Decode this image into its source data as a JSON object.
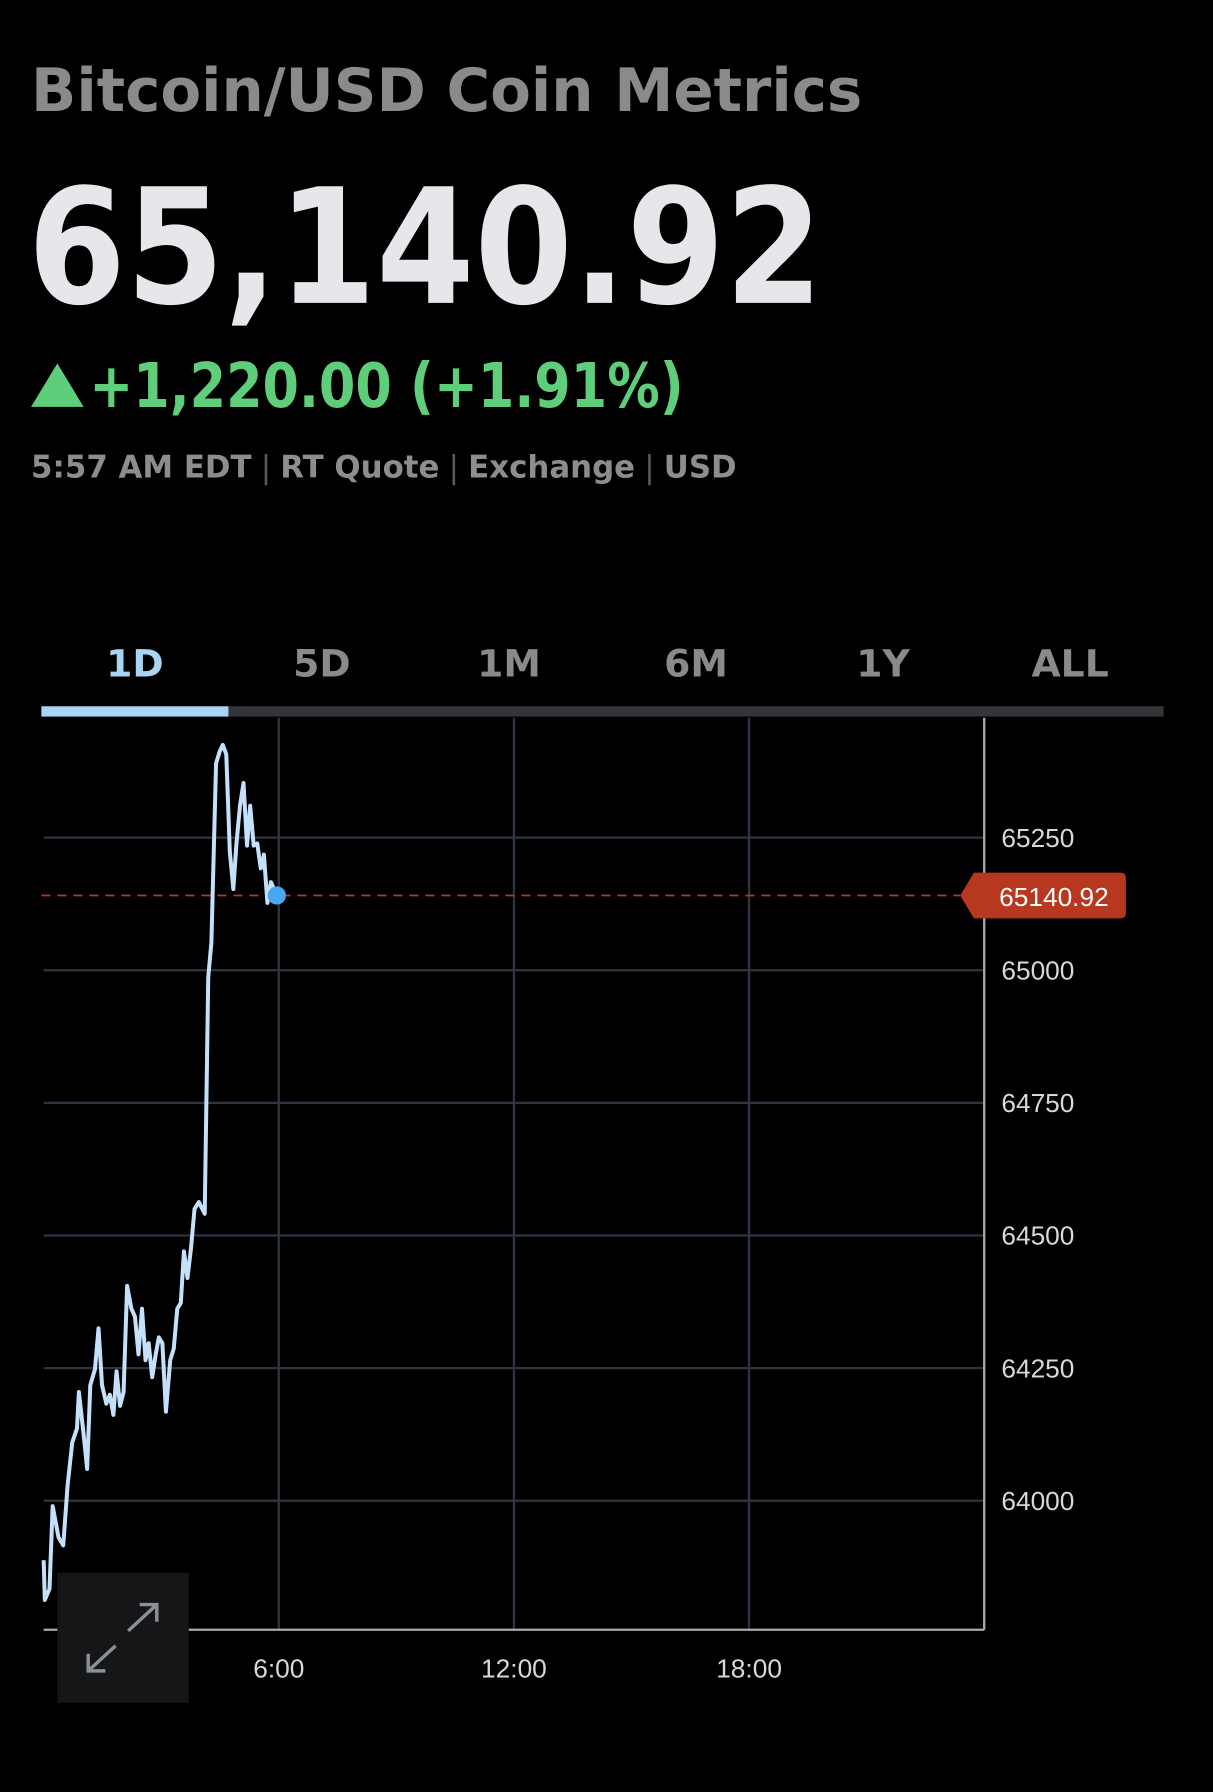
{
  "header": {
    "title": "Bitcoin/USD Coin Metrics",
    "price": "65,140.92",
    "change": "+1,220.00 (+1.91%)",
    "quote_info": [
      "5:57 AM EDT",
      "RT Quote",
      "Exchange",
      "USD"
    ],
    "separator": "|"
  },
  "tabs": {
    "items": [
      "1D",
      "5D",
      "1M",
      "6M",
      "1Y",
      "ALL"
    ],
    "active": 0
  },
  "chart_data": {
    "type": "line",
    "x": [
      0,
      0.03,
      0.15,
      0.23,
      0.38,
      0.5,
      0.61,
      0.73,
      0.85,
      0.9,
      1.02,
      1.11,
      1.19,
      1.31,
      1.4,
      1.49,
      1.6,
      1.69,
      1.78,
      1.86,
      1.95,
      2.04,
      2.13,
      2.24,
      2.33,
      2.42,
      2.51,
      2.6,
      2.68,
      2.77,
      2.86,
      2.94,
      3.03,
      3.12,
      3.23,
      3.32,
      3.41,
      3.5,
      3.58,
      3.67,
      3.76,
      3.85,
      3.96,
      4.11,
      4.2,
      4.28,
      4.4,
      4.49,
      4.57,
      4.66,
      4.75,
      4.84,
      4.92,
      5.01,
      5.1,
      5.19,
      5.27,
      5.36,
      5.45,
      5.54,
      5.62,
      5.71,
      5.8,
      5.95
    ],
    "series": [
      {
        "name": "Bitcoin/USD",
        "color": "#c5e0fb",
        "values": [
          63888,
          63813,
          63834,
          63990,
          63931,
          63916,
          64028,
          64110,
          64136,
          64205,
          64125,
          64060,
          64218,
          64248,
          64325,
          64218,
          64183,
          64200,
          64162,
          64244,
          64179,
          64205,
          64405,
          64362,
          64347,
          64276,
          64362,
          64265,
          64297,
          64233,
          64276,
          64308,
          64297,
          64168,
          64265,
          64287,
          64362,
          64373,
          64470,
          64420,
          64476,
          64550,
          64563,
          64541,
          64987,
          65052,
          65390,
          65412,
          65425,
          65407,
          65224,
          65153,
          65239,
          65310,
          65353,
          65235,
          65310,
          65235,
          65239,
          65192,
          65218,
          65127,
          65166,
          65140.92
        ]
      }
    ],
    "last_price": 65140.92,
    "last_price_color": "#b8371f",
    "xlim": [
      0,
      24
    ],
    "xticks": [
      {
        "value": 6,
        "label": "6:00"
      },
      {
        "value": 12,
        "label": "12:00"
      },
      {
        "value": 18,
        "label": "18:00"
      }
    ],
    "ylim": [
      63757,
      65476
    ],
    "yticks": [
      64000,
      64250,
      64500,
      64750,
      65000,
      65250
    ],
    "grid": true
  }
}
